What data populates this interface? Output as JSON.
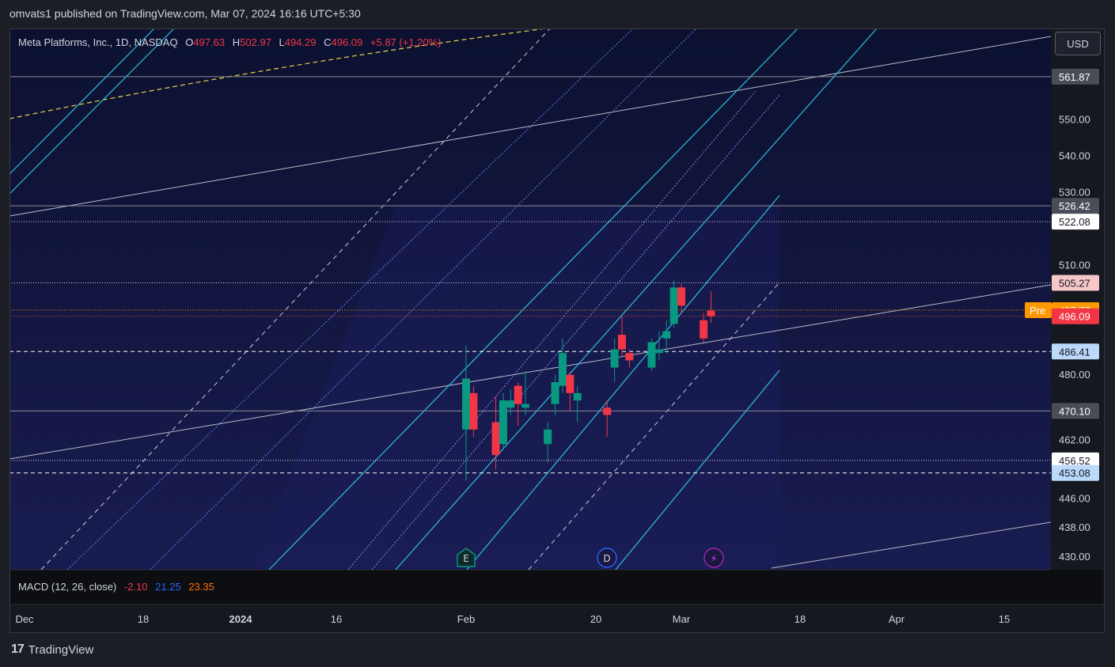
{
  "header": {
    "published": "omvats1 published on TradingView.com, Mar 07, 2024 16:16 UTC+5:30"
  },
  "legend": {
    "symbol": "Meta Platforms, Inc., 1D, NASDAQ",
    "o_label": "O",
    "o": "497.63",
    "h_label": "H",
    "h": "502.97",
    "l_label": "L",
    "l": "494.29",
    "c_label": "C",
    "c": "496.09",
    "change": "+5.87 (+1.20%)"
  },
  "currency_button": "USD",
  "indicator": {
    "label": "MACD (12, 26, close)",
    "v1": "-2.10",
    "v2": "21.25",
    "v3": "23.35"
  },
  "brand": "TradingView",
  "colors": {
    "up": "#089981",
    "down": "#f23645",
    "channel": "#2bc1e0",
    "background": "#131a45"
  },
  "event_markers": [
    {
      "icon": "earnings-icon",
      "glyph": "E",
      "date": "Feb 1"
    },
    {
      "icon": "dividend-icon",
      "glyph": "D",
      "date": "Feb 21"
    },
    {
      "icon": "split-icon",
      "glyph": "⚡",
      "date": "Mar 5"
    }
  ],
  "chart_data": {
    "type": "candlestick",
    "ylim": [
      426,
      566
    ],
    "y_ticks": [
      "430.00",
      "438.00",
      "446.00",
      "462.00",
      "480.00",
      "510.00",
      "530.00",
      "540.00",
      "550.00"
    ],
    "x_ticks": [
      "Dec",
      "18",
      "2024",
      "16",
      "Feb",
      "20",
      "Mar",
      "18",
      "Apr",
      "15"
    ],
    "candles": [
      {
        "date": "2024-02-01",
        "o": 465,
        "h": 488,
        "l": 451,
        "c": 479
      },
      {
        "date": "2024-02-02",
        "o": 475,
        "h": 477,
        "l": 463,
        "c": 465
      },
      {
        "date": "2024-02-05",
        "o": 467,
        "h": 474,
        "l": 454,
        "c": 458
      },
      {
        "date": "2024-02-06",
        "o": 461,
        "h": 475,
        "l": 460,
        "c": 473
      },
      {
        "date": "2024-02-07",
        "o": 471,
        "h": 476,
        "l": 469,
        "c": 473
      },
      {
        "date": "2024-02-08",
        "o": 477,
        "h": 478,
        "l": 466,
        "c": 472
      },
      {
        "date": "2024-02-09",
        "o": 471,
        "h": 481,
        "l": 469,
        "c": 472
      },
      {
        "date": "2024-02-12",
        "o": 461,
        "h": 467,
        "l": 456,
        "c": 465
      },
      {
        "date": "2024-02-13",
        "o": 472,
        "h": 480,
        "l": 469,
        "c": 478
      },
      {
        "date": "2024-02-14",
        "o": 477,
        "h": 490,
        "l": 475,
        "c": 486
      },
      {
        "date": "2024-02-15",
        "o": 480,
        "h": 481,
        "l": 470,
        "c": 475
      },
      {
        "date": "2024-02-16",
        "o": 473,
        "h": 477,
        "l": 467,
        "c": 475
      },
      {
        "date": "2024-02-20",
        "o": 471,
        "h": 473,
        "l": 463,
        "c": 469
      },
      {
        "date": "2024-02-21",
        "o": 482,
        "h": 490,
        "l": 478,
        "c": 487
      },
      {
        "date": "2024-02-22",
        "o": 491,
        "h": 496,
        "l": 485,
        "c": 487
      },
      {
        "date": "2024-02-23",
        "o": 486,
        "h": 487,
        "l": 482,
        "c": 484
      },
      {
        "date": "2024-02-26",
        "o": 482,
        "h": 490,
        "l": 481,
        "c": 489
      },
      {
        "date": "2024-02-27",
        "o": 486,
        "h": 492,
        "l": 484,
        "c": 487
      },
      {
        "date": "2024-02-28",
        "o": 490,
        "h": 495,
        "l": 486,
        "c": 492
      },
      {
        "date": "2024-02-29",
        "o": 494,
        "h": 506,
        "l": 493,
        "c": 504
      },
      {
        "date": "2024-03-01",
        "o": 504,
        "h": 505,
        "l": 497,
        "c": 499
      },
      {
        "date": "2024-03-04",
        "o": 495,
        "h": 497,
        "l": 489,
        "c": 490
      },
      {
        "date": "2024-03-05",
        "o": 497.63,
        "h": 502.97,
        "l": 494.29,
        "c": 496.09
      }
    ],
    "levels": [
      {
        "value": 561.87,
        "label": "561.87",
        "style": "solid",
        "tag": "dark"
      },
      {
        "value": 526.42,
        "label": "526.42",
        "style": "solid",
        "tag": "dark"
      },
      {
        "value": 522.08,
        "label": "522.08",
        "style": "dotted",
        "tag": "white"
      },
      {
        "value": 505.27,
        "label": "505.27",
        "style": "dotted",
        "tag": "pink"
      },
      {
        "value": 497.77,
        "label": "497.77",
        "style": "dotted",
        "tag": "orange",
        "prefix": "Pre"
      },
      {
        "value": 496.09,
        "label": "496.09",
        "style": "dotted",
        "tag": "red"
      },
      {
        "value": 486.41,
        "label": "486.41",
        "style": "dashed",
        "tag": "lightblue"
      },
      {
        "value": 470.1,
        "label": "470.10",
        "style": "solid",
        "tag": "dark"
      },
      {
        "value": 456.52,
        "label": "456.52",
        "style": "dotted",
        "tag": "white"
      },
      {
        "value": 453.08,
        "label": "453.08",
        "style": "dashed",
        "tag": "lightblue"
      }
    ]
  }
}
